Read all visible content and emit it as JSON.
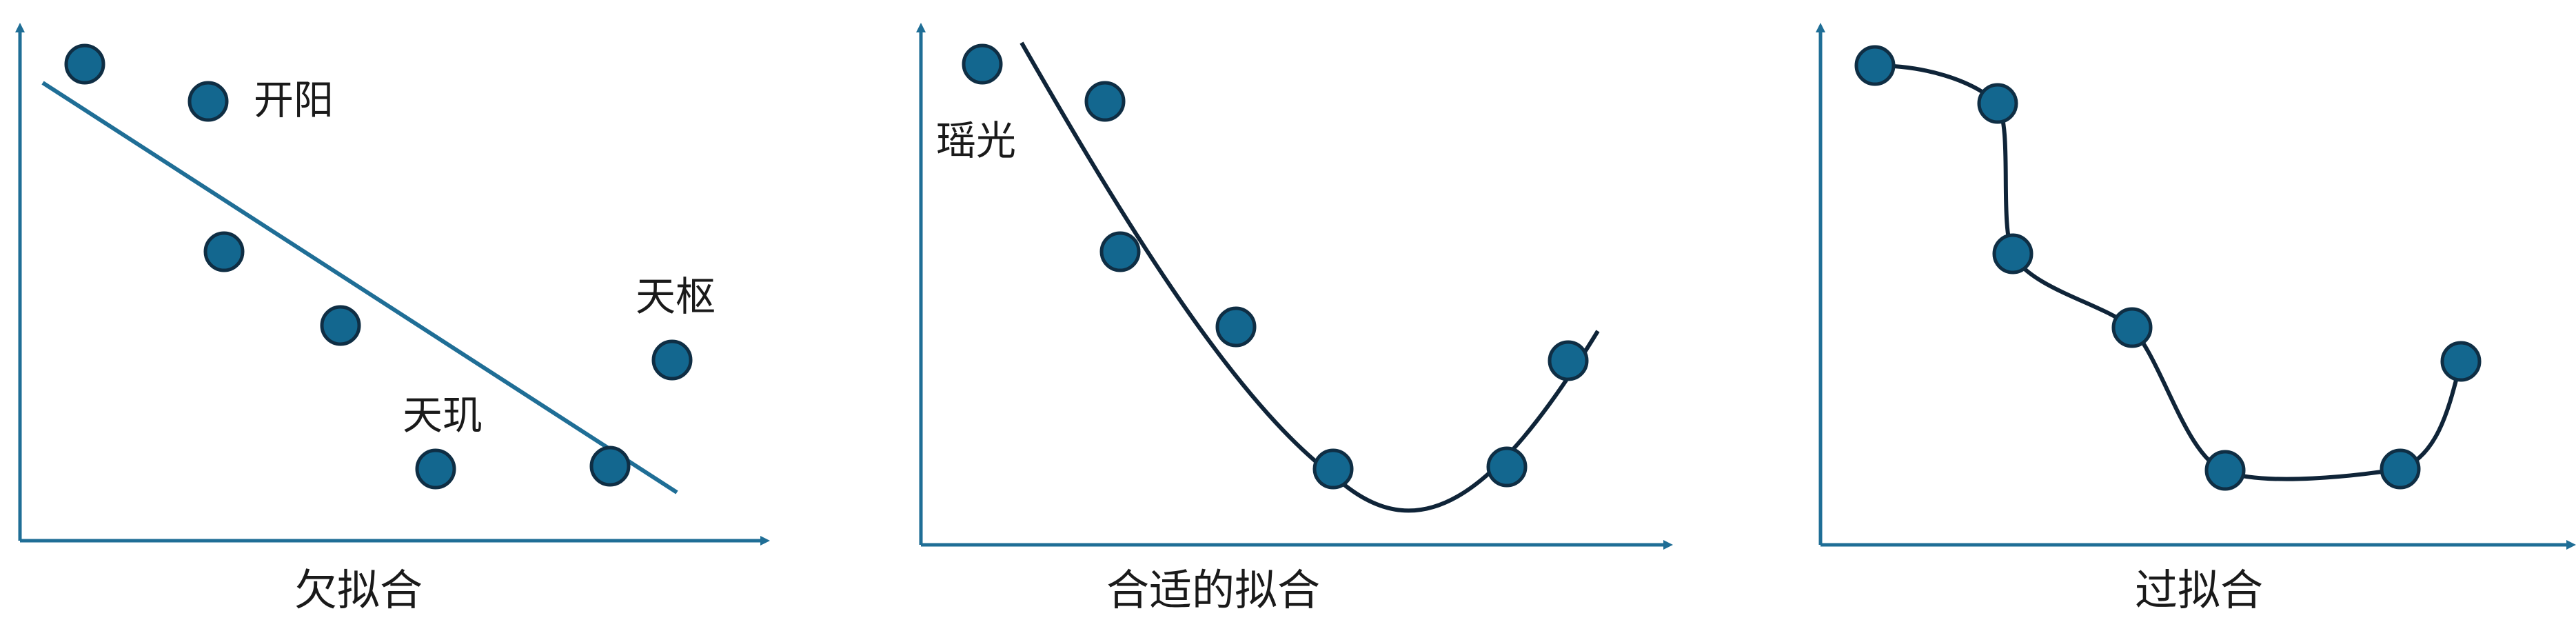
{
  "colors": {
    "axis": "#1f6e96",
    "dot_fill": "#13678f",
    "dot_stroke": "#0f2e44",
    "line_under": "#1f6e96",
    "curve": "#0f2438",
    "text": "#1a1a1a"
  },
  "panels": [
    {
      "caption": "欠拟合",
      "labels": [
        "开阳",
        "天枢",
        "天玑"
      ],
      "fit": "straight-line"
    },
    {
      "caption": "合适的拟合",
      "labels": [
        "瑶光"
      ],
      "fit": "smooth-curve"
    },
    {
      "caption": "过拟合",
      "labels": [],
      "fit": "through-every-point"
    }
  ]
}
